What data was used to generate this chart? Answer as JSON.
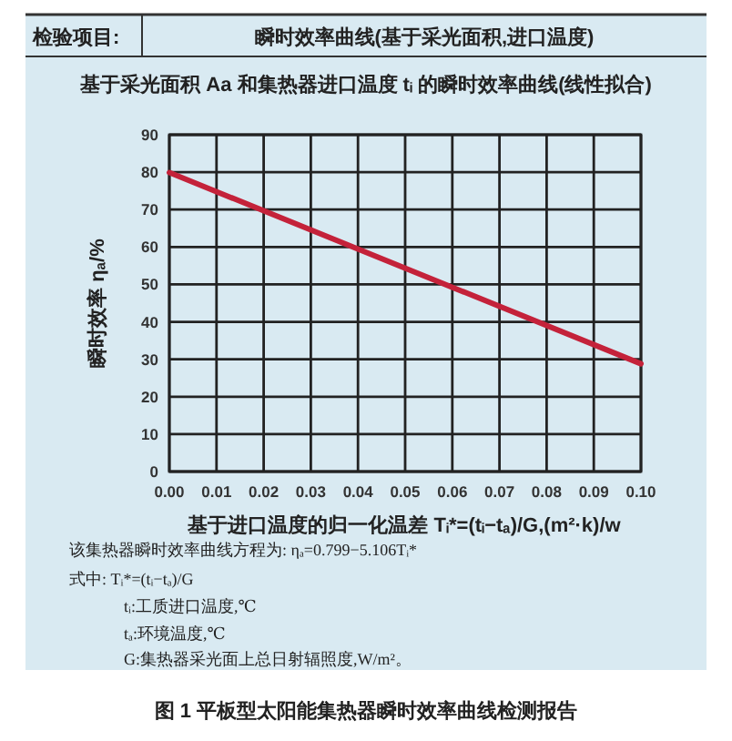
{
  "chart_data": {
    "type": "line",
    "title": "瞬时效率曲线(基于采光面积,进口温度)",
    "subtitle": "基于采光面积 Aa 和集热器进口温度 tᵢ 的瞬时效率曲线(线性拟合)",
    "xlabel": "基于进口温度的归一化温差 Tᵢ*=(tᵢ−tₐ)/G,(m²·k)/w",
    "ylabel": "瞬时效率 ηₐ/%",
    "annotations": [
      "检验项目:",
      "该集热器瞬时效率曲线方程为: ηₐ=0.799−5.106Tᵢ*",
      "式中: Tᵢ*=(tᵢ−tₐ)/G",
      "tᵢ:工质进口温度,℃",
      "tₐ:环境温度,℃",
      "G:集热器采光面上总日射辐照度,W/m²。",
      "图 1  平板型太阳能集热器瞬时效率曲线检测报告"
    ],
    "x": [
      0,
      0.1
    ],
    "series": [
      {
        "color": "#c4223a",
        "values": [
          79.9,
          28.8
        ]
      }
    ],
    "xlim": [
      0,
      0.1
    ],
    "ylim": [
      0,
      90
    ],
    "xticks": [
      {
        "value": 0,
        "label": "0.00"
      },
      {
        "value": 0.01,
        "label": "0.01"
      },
      {
        "value": 0.02,
        "label": "0.02"
      },
      {
        "value": 0.03,
        "label": "0.03"
      },
      {
        "value": 0.04,
        "label": "0.04"
      },
      {
        "value": 0.05,
        "label": "0.05"
      },
      {
        "value": 0.06,
        "label": "0.06"
      },
      {
        "value": 0.07,
        "label": "0.07"
      },
      {
        "value": 0.08,
        "label": "0.08"
      },
      {
        "value": 0.09,
        "label": "0.09"
      },
      {
        "value": 0.1,
        "label": "0.10"
      }
    ],
    "yticks": [
      0,
      10,
      20,
      30,
      40,
      50,
      60,
      70,
      80,
      90
    ],
    "grid": true
  }
}
